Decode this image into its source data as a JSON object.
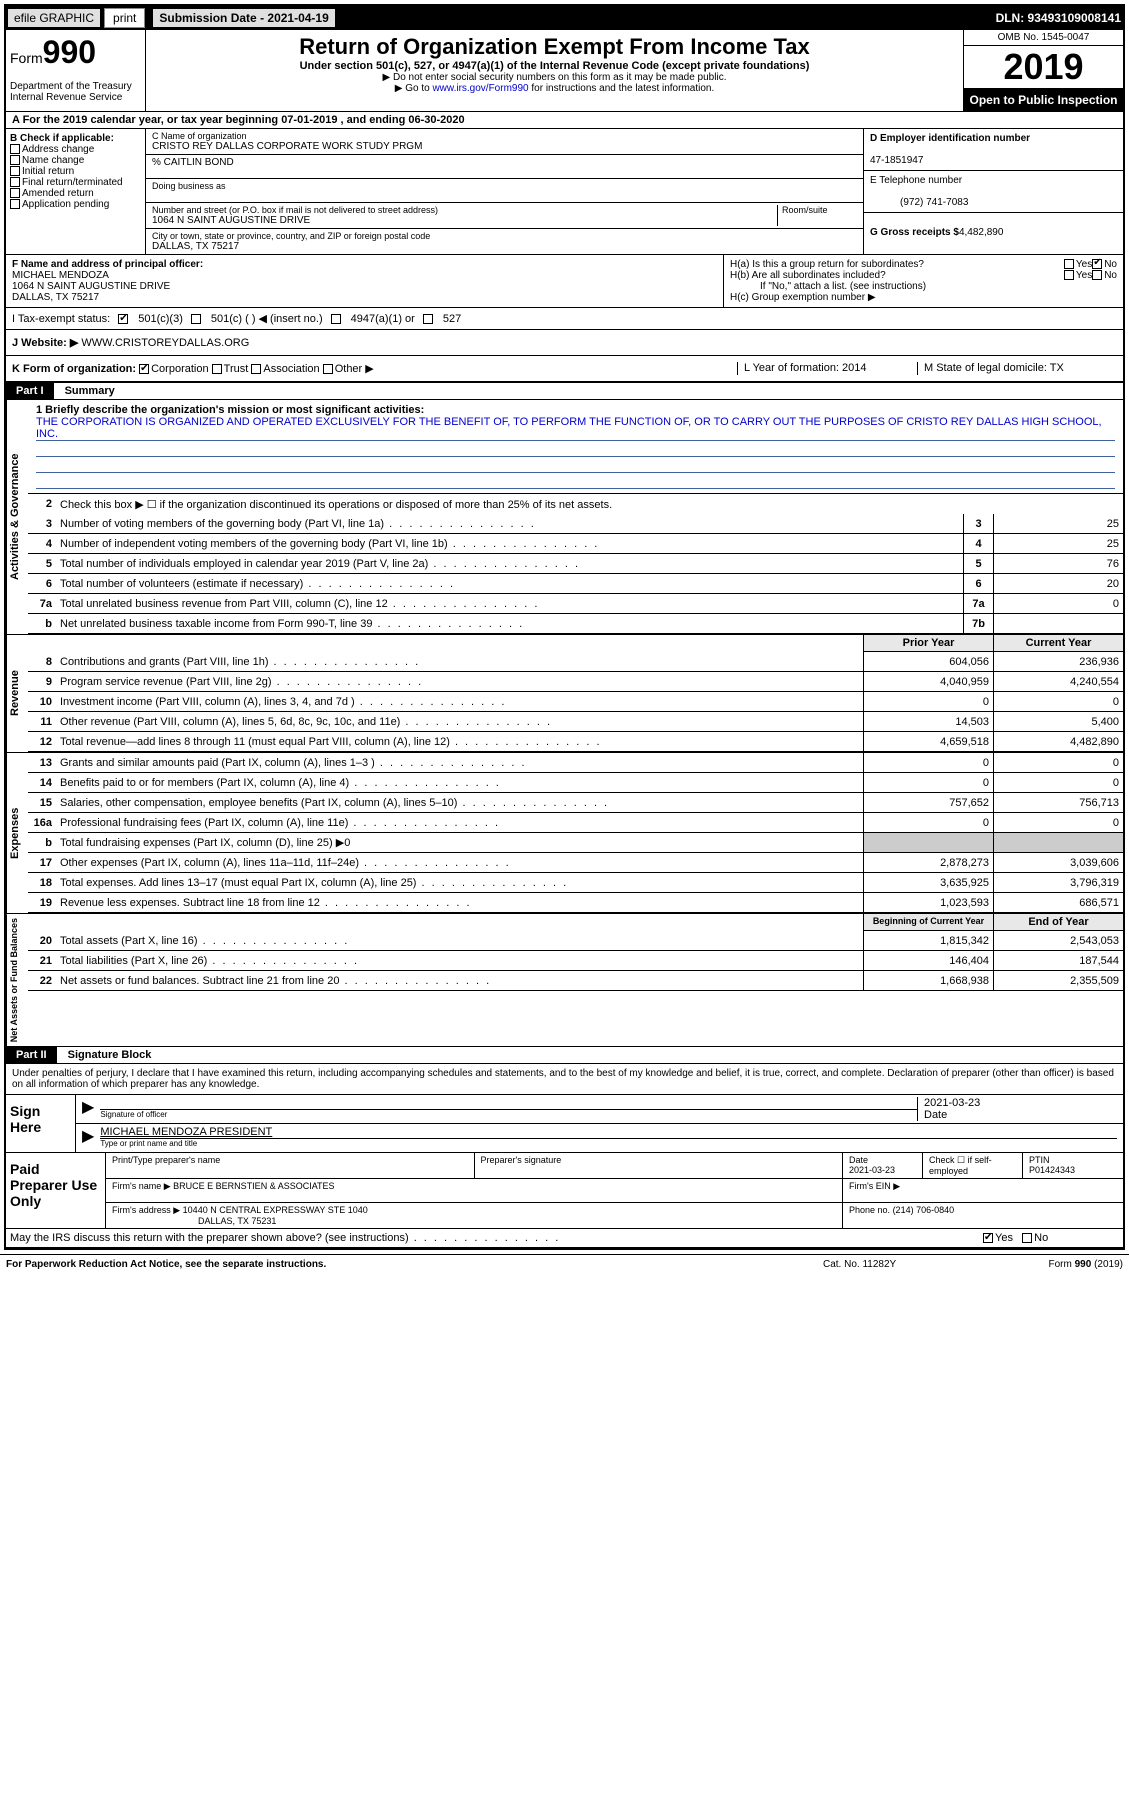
{
  "topbar": {
    "efile": "efile GRAPHIC",
    "print": "print",
    "submission_label": "Submission Date - 2021-04-19",
    "dln": "DLN: 93493109008141"
  },
  "header": {
    "form_prefix": "Form",
    "form_num": "990",
    "dept": "Department of the Treasury\nInternal Revenue Service",
    "title": "Return of Organization Exempt From Income Tax",
    "subtitle": "Under section 501(c), 527, or 4947(a)(1) of the Internal Revenue Code (except private foundations)",
    "note1": "▶ Do not enter social security numbers on this form as it may be made public.",
    "note2_pre": "▶ Go to ",
    "note2_link": "www.irs.gov/Form990",
    "note2_post": " for instructions and the latest information.",
    "omb": "OMB No. 1545-0047",
    "year": "2019",
    "open": "Open to Public Inspection"
  },
  "row_a": "A For the 2019 calendar year, or tax year beginning 07-01-2019   , and ending 06-30-2020",
  "section_b": {
    "header": "B Check if applicable:",
    "opts": [
      "Address change",
      "Name change",
      "Initial return",
      "Final return/terminated",
      "Amended return",
      "Application pending"
    ]
  },
  "section_c": {
    "name_label": "C Name of organization",
    "name": "CRISTO REY DALLAS CORPORATE WORK STUDY PRGM",
    "care_label": "% CAITLIN BOND",
    "dba_label": "Doing business as",
    "addr_label": "Number and street (or P.O. box if mail is not delivered to street address)",
    "room_label": "Room/suite",
    "addr": "1064 N SAINT AUGUSTINE DRIVE",
    "city_label": "City or town, state or province, country, and ZIP or foreign postal code",
    "city": "DALLAS, TX  75217"
  },
  "section_d": {
    "ein_label": "D Employer identification number",
    "ein": "47-1851947",
    "phone_label": "E Telephone number",
    "phone": "(972) 741-7083",
    "gross_label": "G Gross receipts $",
    "gross": "4,482,890"
  },
  "section_f": {
    "label": "F Name and address of principal officer:",
    "name": "MICHAEL MENDOZA",
    "addr1": "1064 N SAINT AUGUSTINE DRIVE",
    "addr2": "DALLAS, TX  75217"
  },
  "section_h": {
    "ha": "H(a)  Is this a group return for subordinates?",
    "hb": "H(b)  Are all subordinates included?",
    "hb_note": "If \"No,\" attach a list. (see instructions)",
    "hc": "H(c)  Group exemption number ▶",
    "yes": "Yes",
    "no": "No"
  },
  "tax_status": {
    "label": "I  Tax-exempt status:",
    "o1": "501(c)(3)",
    "o2": "501(c) (  ) ◀ (insert no.)",
    "o3": "4947(a)(1) or",
    "o4": "527"
  },
  "website": {
    "label": "J  Website: ▶",
    "val": "WWW.CRISTOREYDALLAS.ORG"
  },
  "row_k": {
    "label": "K Form of organization:",
    "opts": [
      "Corporation",
      "Trust",
      "Association",
      "Other ▶"
    ],
    "l": "L Year of formation: 2014",
    "m": "M State of legal domicile: TX"
  },
  "part1": {
    "title": "Part I",
    "label": "Summary"
  },
  "mission": {
    "label": "1  Briefly describe the organization's mission or most significant activities:",
    "text": "THE CORPORATION IS ORGANIZED AND OPERATED EXCLUSIVELY FOR THE BENEFIT OF, TO PERFORM THE FUNCTION OF, OR TO CARRY OUT THE PURPOSES OF CRISTO REY DALLAS HIGH SCHOOL, INC."
  },
  "line2": "Check this box ▶ ☐ if the organization discontinued its operations or disposed of more than 25% of its net assets.",
  "governance": {
    "label": "Activities & Governance",
    "lines": [
      {
        "n": "3",
        "d": "Number of voting members of the governing body (Part VI, line 1a)",
        "box": "3",
        "v": "25"
      },
      {
        "n": "4",
        "d": "Number of independent voting members of the governing body (Part VI, line 1b)",
        "box": "4",
        "v": "25"
      },
      {
        "n": "5",
        "d": "Total number of individuals employed in calendar year 2019 (Part V, line 2a)",
        "box": "5",
        "v": "76"
      },
      {
        "n": "6",
        "d": "Total number of volunteers (estimate if necessary)",
        "box": "6",
        "v": "20"
      },
      {
        "n": "7a",
        "d": "Total unrelated business revenue from Part VIII, column (C), line 12",
        "box": "7a",
        "v": "0"
      },
      {
        "n": "b",
        "d": "Net unrelated business taxable income from Form 990-T, line 39",
        "box": "7b",
        "v": ""
      }
    ]
  },
  "col_headers": {
    "prior": "Prior Year",
    "current": "Current Year"
  },
  "revenue": {
    "label": "Revenue",
    "lines": [
      {
        "n": "8",
        "d": "Contributions and grants (Part VIII, line 1h)",
        "p": "604,056",
        "c": "236,936"
      },
      {
        "n": "9",
        "d": "Program service revenue (Part VIII, line 2g)",
        "p": "4,040,959",
        "c": "4,240,554"
      },
      {
        "n": "10",
        "d": "Investment income (Part VIII, column (A), lines 3, 4, and 7d )",
        "p": "0",
        "c": "0"
      },
      {
        "n": "11",
        "d": "Other revenue (Part VIII, column (A), lines 5, 6d, 8c, 9c, 10c, and 11e)",
        "p": "14,503",
        "c": "5,400"
      },
      {
        "n": "12",
        "d": "Total revenue—add lines 8 through 11 (must equal Part VIII, column (A), line 12)",
        "p": "4,659,518",
        "c": "4,482,890"
      }
    ]
  },
  "expenses": {
    "label": "Expenses",
    "lines": [
      {
        "n": "13",
        "d": "Grants and similar amounts paid (Part IX, column (A), lines 1–3 )",
        "p": "0",
        "c": "0"
      },
      {
        "n": "14",
        "d": "Benefits paid to or for members (Part IX, column (A), line 4)",
        "p": "0",
        "c": "0"
      },
      {
        "n": "15",
        "d": "Salaries, other compensation, employee benefits (Part IX, column (A), lines 5–10)",
        "p": "757,652",
        "c": "756,713"
      },
      {
        "n": "16a",
        "d": "Professional fundraising fees (Part IX, column (A), line 11e)",
        "p": "0",
        "c": "0"
      },
      {
        "n": "b",
        "d": "Total fundraising expenses (Part IX, column (D), line 25) ▶0",
        "p": "",
        "c": "",
        "shaded": true
      },
      {
        "n": "17",
        "d": "Other expenses (Part IX, column (A), lines 11a–11d, 11f–24e)",
        "p": "2,878,273",
        "c": "3,039,606"
      },
      {
        "n": "18",
        "d": "Total expenses. Add lines 13–17 (must equal Part IX, column (A), line 25)",
        "p": "3,635,925",
        "c": "3,796,319"
      },
      {
        "n": "19",
        "d": "Revenue less expenses. Subtract line 18 from line 12",
        "p": "1,023,593",
        "c": "686,571"
      }
    ]
  },
  "col_headers2": {
    "begin": "Beginning of Current Year",
    "end": "End of Year"
  },
  "netassets": {
    "label": "Net Assets or Fund Balances",
    "lines": [
      {
        "n": "20",
        "d": "Total assets (Part X, line 16)",
        "p": "1,815,342",
        "c": "2,543,053"
      },
      {
        "n": "21",
        "d": "Total liabilities (Part X, line 26)",
        "p": "146,404",
        "c": "187,544"
      },
      {
        "n": "22",
        "d": "Net assets or fund balances. Subtract line 21 from line 20",
        "p": "1,668,938",
        "c": "2,355,509"
      }
    ]
  },
  "part2": {
    "title": "Part II",
    "label": "Signature Block"
  },
  "sig": {
    "intro": "Under penalties of perjury, I declare that I have examined this return, including accompanying schedules and statements, and to the best of my knowledge and belief, it is true, correct, and complete. Declaration of preparer (other than officer) is based on all information of which preparer has any knowledge.",
    "sign_here": "Sign Here",
    "sig_officer": "Signature of officer",
    "date_lbl": "Date",
    "date": "2021-03-23",
    "name": "MICHAEL MENDOZA  PRESIDENT",
    "name_lbl": "Type or print name and title"
  },
  "prep": {
    "label": "Paid Preparer Use Only",
    "h1": "Print/Type preparer's name",
    "h2": "Preparer's signature",
    "h3": "Date",
    "date": "2021-03-23",
    "h4_pre": "Check ☐ if self-employed",
    "h5": "PTIN",
    "ptin": "P01424343",
    "firm_name_lbl": "Firm's name    ▶",
    "firm_name": "BRUCE E BERNSTIEN & ASSOCIATES",
    "firm_ein_lbl": "Firm's EIN ▶",
    "firm_addr_lbl": "Firm's address ▶",
    "firm_addr1": "10440 N CENTRAL EXPRESSWAY STE 1040",
    "firm_addr2": "DALLAS, TX  75231",
    "phone_lbl": "Phone no.",
    "phone": "(214) 706-0840",
    "discuss": "May the IRS discuss this return with the preparer shown above? (see instructions)",
    "yes": "Yes",
    "no": "No"
  },
  "footer": {
    "left": "For Paperwork Reduction Act Notice, see the separate instructions.",
    "mid": "Cat. No. 11282Y",
    "right": "Form 990 (2019)"
  }
}
